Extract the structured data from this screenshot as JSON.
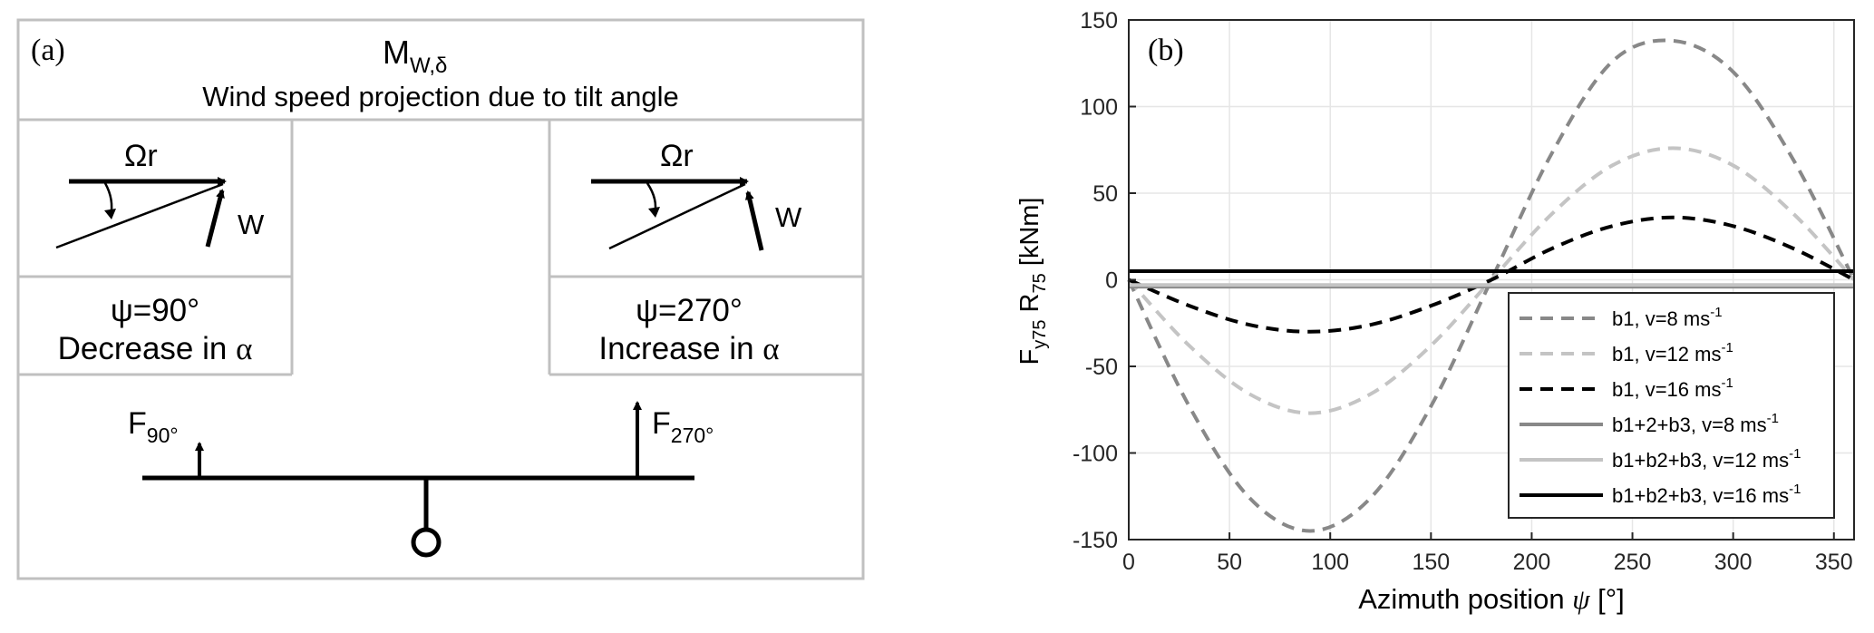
{
  "panel_a": {
    "label": "(a)",
    "moment_main": "M",
    "moment_sub": "W,δ",
    "subtitle": "Wind speed projection due to tilt angle",
    "left": {
      "omega_label": "Ωr",
      "w_label": "W",
      "psi_label": "ψ=90°",
      "effect_prefix": "Decrease in ",
      "alpha": "α"
    },
    "right": {
      "omega_label": "Ωr",
      "w_label": "W",
      "psi_label": "ψ=270°",
      "effect_prefix": "Increase in ",
      "alpha": "α"
    },
    "force_left_main": "F",
    "force_left_sub": "90°",
    "force_right_main": "F",
    "force_right_sub": "270°"
  },
  "panel_b": {
    "label": "(b)"
  },
  "chart_data": {
    "type": "line",
    "xlabel": "Azimuth position ψ [°]",
    "ylabel": "F_y75 R_75 [kNm]",
    "xlim": [
      0,
      360
    ],
    "ylim": [
      -150,
      150
    ],
    "xticks": [
      0,
      50,
      100,
      150,
      200,
      250,
      300,
      350
    ],
    "yticks": [
      -150,
      -100,
      -50,
      0,
      50,
      100,
      150
    ],
    "grid": true,
    "legend_position": "bottom-right",
    "x": [
      0,
      30,
      60,
      90,
      120,
      150,
      180,
      210,
      240,
      270,
      300,
      330,
      360
    ],
    "series": [
      {
        "name": "b1, v=8 ms",
        "name_sup": "-1",
        "style": "dashed",
        "color": "#888888",
        "values": [
          0,
          -73,
          -126,
          -145,
          -126,
          -73,
          0,
          73,
          126,
          138,
          120,
          69,
          0
        ]
      },
      {
        "name": "b1, v=12 ms",
        "name_sup": "-1",
        "style": "dashed",
        "color": "#c4c4c4",
        "values": [
          0,
          -38,
          -66,
          -77,
          -66,
          -38,
          0,
          38,
          66,
          76,
          66,
          38,
          0
        ]
      },
      {
        "name": "b1, v=16 ms",
        "name_sup": "-1",
        "style": "dashed",
        "color": "#000000",
        "values": [
          0,
          -15,
          -26,
          -30,
          -26,
          -15,
          0,
          18,
          31,
          36,
          31,
          18,
          0
        ]
      },
      {
        "name": "b1+2+b3, v=8 ms",
        "name_sup": "-1",
        "style": "solid",
        "color": "#888888",
        "values": [
          -4,
          -4,
          -4,
          -4,
          -4,
          -4,
          -4,
          -4,
          -4,
          -4,
          -4,
          -4,
          -4
        ]
      },
      {
        "name": "b1+b2+b3, v=12 ms",
        "name_sup": "-1",
        "style": "solid",
        "color": "#c4c4c4",
        "values": [
          -3,
          -3,
          -3,
          -3,
          -3,
          -3,
          -3,
          -3,
          -3,
          -3,
          -3,
          -3,
          -3
        ]
      },
      {
        "name": "b1+b2+b3, v=16 ms",
        "name_sup": "-1",
        "style": "solid",
        "color": "#000000",
        "values": [
          5,
          5,
          5,
          5,
          5,
          5,
          5,
          5,
          5,
          5,
          5,
          5,
          5
        ]
      }
    ]
  }
}
